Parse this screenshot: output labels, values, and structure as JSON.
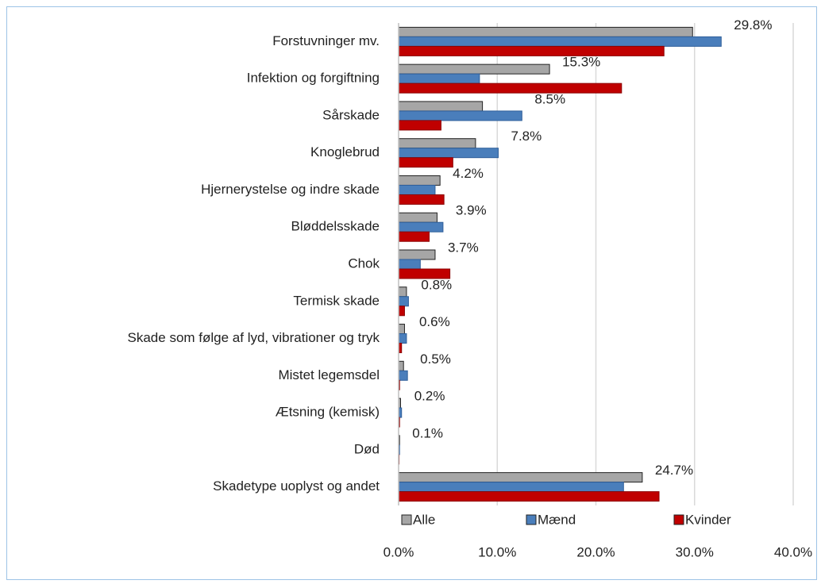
{
  "chart_data": {
    "type": "bar",
    "orientation": "horizontal",
    "categories": [
      "Forstuvninger mv.",
      "Infektion og forgiftning",
      "Sårskade",
      "Knoglebrud",
      "Hjernerystelse og indre skade",
      "Bløddelsskade",
      "Chok",
      "Termisk skade",
      "Skade som følge af lyd, vibrationer og tryk",
      "Mistet legemsdel",
      "Ætsning (kemisk)",
      "Død",
      "Skadetype uoplyst og andet"
    ],
    "series": [
      {
        "name": "Alle",
        "color": "#a6a6a6",
        "values": [
          29.8,
          15.3,
          8.5,
          7.8,
          4.2,
          3.9,
          3.7,
          0.8,
          0.6,
          0.5,
          0.2,
          0.1,
          24.7
        ],
        "value_labels": [
          "29.8%",
          "15.3%",
          "8.5%",
          "7.8%",
          "4.2%",
          "3.9%",
          "3.7%",
          "0.8%",
          "0.6%",
          "0.5%",
          "0.2%",
          "0.1%",
          "24.7%"
        ]
      },
      {
        "name": "Mænd",
        "color": "#4a7ebb",
        "values": [
          32.7,
          8.2,
          12.5,
          10.1,
          3.7,
          4.5,
          2.2,
          1.0,
          0.8,
          0.9,
          0.3,
          0.1,
          22.8
        ]
      },
      {
        "name": "Kvinder",
        "color": "#c00000",
        "values": [
          26.9,
          22.6,
          4.3,
          5.5,
          4.6,
          3.1,
          5.2,
          0.6,
          0.3,
          0.1,
          0.1,
          0.05,
          26.4
        ]
      }
    ],
    "xlim": [
      0,
      40
    ],
    "xticks": [
      {
        "value": 0,
        "label": "0.0%"
      },
      {
        "value": 10,
        "label": "10.0%"
      },
      {
        "value": 20,
        "label": "20.0%"
      },
      {
        "value": 30,
        "label": "30.0%"
      },
      {
        "value": 40,
        "label": "40.0%"
      }
    ],
    "grid": true,
    "legend": "bottom"
  }
}
